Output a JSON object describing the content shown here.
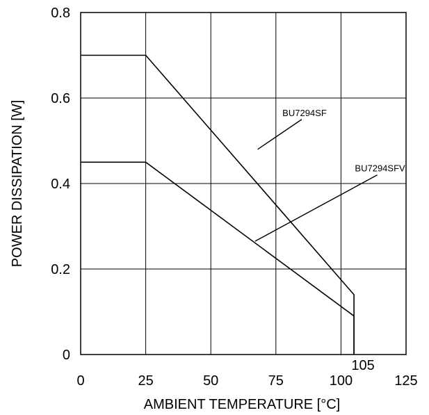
{
  "chart_data": {
    "type": "line",
    "xlabel": "AMBIENT TEMPERATURE [°C]",
    "ylabel": "POWER DISSIPATION [W]",
    "xlim": [
      0,
      125
    ],
    "ylim": [
      0,
      0.8
    ],
    "grid": true,
    "x_ticks": [
      0,
      25,
      50,
      75,
      100,
      125
    ],
    "y_ticks": [
      0,
      0.2,
      0.4,
      0.6,
      0.8
    ],
    "annotations": [
      "105"
    ],
    "annotation_x": [
      105
    ],
    "series": [
      {
        "name": "BU7294SF",
        "x": [
          0,
          25,
          105,
          105
        ],
        "y": [
          0.7,
          0.7,
          0.14,
          0
        ]
      },
      {
        "name": "BU7294SFV",
        "x": [
          0,
          25,
          105,
          105
        ],
        "y": [
          0.45,
          0.45,
          0.09,
          0
        ]
      }
    ],
    "series_labels": [
      {
        "series": 0,
        "at_x": 86,
        "at_y": 0.55,
        "pointer_x": 68,
        "pointer_y": 0.48
      },
      {
        "series": 1,
        "at_x": 115,
        "at_y": 0.42,
        "pointer_x": 67,
        "pointer_y": 0.265
      }
    ]
  }
}
